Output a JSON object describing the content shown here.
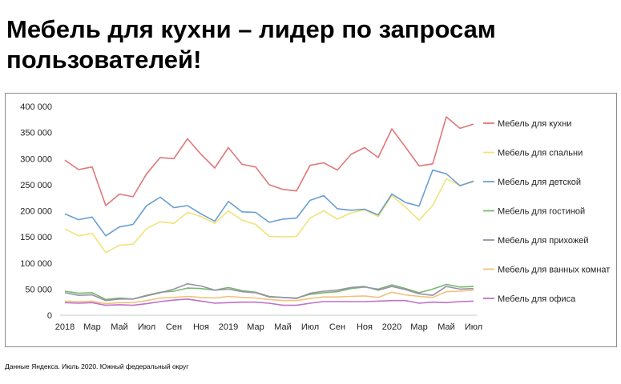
{
  "page": {
    "title": "Мебель для кухни – лидер по запросам пользователей!",
    "source": "Данные Яндекса. Июль 2020. Южный федеральный округ"
  },
  "chart_data": {
    "type": "line",
    "title": "",
    "xlabel": "",
    "ylabel": "",
    "ylim": [
      0,
      400000
    ],
    "yticks": [
      0,
      50000,
      100000,
      150000,
      200000,
      250000,
      300000,
      350000,
      400000
    ],
    "ytick_labels": [
      "0",
      "50 000",
      "100 000",
      "150 000",
      "200 000",
      "250 000",
      "300 000",
      "350 000",
      "400 000"
    ],
    "grid": false,
    "legend": "right",
    "x": [
      "2018-01",
      "2018-02",
      "2018-03",
      "2018-04",
      "2018-05",
      "2018-06",
      "2018-07",
      "2018-08",
      "2018-09",
      "2018-10",
      "2018-11",
      "2018-12",
      "2019-01",
      "2019-02",
      "2019-03",
      "2019-04",
      "2019-05",
      "2019-06",
      "2019-07",
      "2019-08",
      "2019-09",
      "2019-10",
      "2019-11",
      "2019-12",
      "2020-01",
      "2020-02",
      "2020-03",
      "2020-04",
      "2020-05",
      "2020-06",
      "2020-07"
    ],
    "x_tick_labels": [
      {
        "index": 0,
        "label": "2018"
      },
      {
        "index": 2,
        "label": "Мар"
      },
      {
        "index": 4,
        "label": "Май"
      },
      {
        "index": 6,
        "label": "Июл"
      },
      {
        "index": 8,
        "label": "Сен"
      },
      {
        "index": 10,
        "label": "Ноя"
      },
      {
        "index": 12,
        "label": "2019"
      },
      {
        "index": 14,
        "label": "Мар"
      },
      {
        "index": 16,
        "label": "Май"
      },
      {
        "index": 18,
        "label": "Июл"
      },
      {
        "index": 20,
        "label": "Сен"
      },
      {
        "index": 22,
        "label": "Ноя"
      },
      {
        "index": 24,
        "label": "2020"
      },
      {
        "index": 26,
        "label": "Мар"
      },
      {
        "index": 28,
        "label": "Май"
      },
      {
        "index": 30,
        "label": "Июл"
      }
    ],
    "series": [
      {
        "name": "Мебель для кухни",
        "color": "#e0787a",
        "values": [
          297000,
          279000,
          284000,
          210000,
          232000,
          227000,
          271000,
          302000,
          300000,
          338000,
          308000,
          282000,
          321000,
          289000,
          284000,
          250000,
          241000,
          238000,
          287000,
          292000,
          278000,
          308000,
          321000,
          302000,
          357000,
          322000,
          286000,
          290000,
          380000,
          358000,
          366000
        ]
      },
      {
        "name": "Мебель для спальни",
        "color": "#f2e27a",
        "values": [
          165000,
          152000,
          157000,
          120000,
          134000,
          136000,
          166000,
          179000,
          176000,
          197000,
          189000,
          176000,
          200000,
          182000,
          174000,
          151000,
          150000,
          151000,
          186000,
          200000,
          184000,
          196000,
          202000,
          189000,
          229000,
          207000,
          182000,
          210000,
          261000,
          249000,
          255000
        ]
      },
      {
        "name": "Мебель для детской",
        "color": "#6a9ed0",
        "values": [
          194000,
          183000,
          188000,
          152000,
          169000,
          174000,
          210000,
          226000,
          206000,
          210000,
          194000,
          180000,
          218000,
          198000,
          197000,
          178000,
          184000,
          186000,
          220000,
          229000,
          204000,
          201000,
          203000,
          192000,
          232000,
          216000,
          209000,
          278000,
          271000,
          248000,
          257000
        ]
      },
      {
        "name": "Мебель для гостиной",
        "color": "#76b86f",
        "values": [
          46000,
          42000,
          43000,
          30000,
          33000,
          31000,
          38000,
          44000,
          46000,
          52000,
          51000,
          48000,
          53000,
          47000,
          44000,
          36000,
          34000,
          33000,
          40000,
          43000,
          45000,
          51000,
          54000,
          50000,
          58000,
          51000,
          43000,
          50000,
          59000,
          54000,
          55000
        ]
      },
      {
        "name": "Мебель для прихожей",
        "color": "#9a90a8",
        "values": [
          43000,
          38000,
          39000,
          28000,
          31000,
          31000,
          37000,
          43000,
          50000,
          60000,
          56000,
          48000,
          50000,
          45000,
          43000,
          35000,
          34000,
          32000,
          42000,
          46000,
          48000,
          53000,
          55000,
          48000,
          55000,
          49000,
          41000,
          38000,
          55000,
          50000,
          51000
        ]
      },
      {
        "name": "Мебель для ванных комнат",
        "color": "#f0c27a",
        "values": [
          27000,
          26000,
          27000,
          22000,
          24000,
          24000,
          28000,
          33000,
          34000,
          36000,
          34000,
          33000,
          36000,
          34000,
          33000,
          30000,
          28000,
          28000,
          32000,
          35000,
          35000,
          36000,
          37000,
          34000,
          44000,
          39000,
          36000,
          34000,
          45000,
          46000,
          48000
        ]
      },
      {
        "name": "Мебель для офиса",
        "color": "#c070c8",
        "values": [
          24000,
          23000,
          24000,
          19000,
          20000,
          19000,
          22000,
          26000,
          29000,
          31000,
          27000,
          23000,
          24000,
          25000,
          25000,
          23000,
          19000,
          19000,
          23000,
          26000,
          26000,
          26000,
          26000,
          27000,
          28000,
          28000,
          23000,
          25000,
          24000,
          26000,
          27000
        ]
      }
    ]
  }
}
